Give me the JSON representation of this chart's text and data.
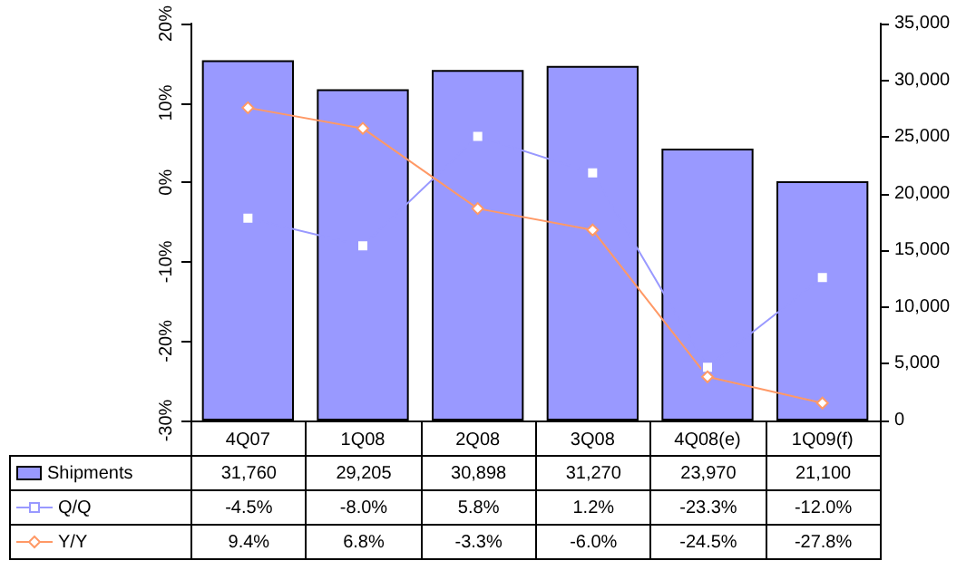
{
  "chart_data": {
    "type": "bar",
    "categories": [
      "4Q07",
      "1Q08",
      "2Q08",
      "3Q08",
      "4Q08(e)",
      "1Q09(f)"
    ],
    "series": [
      {
        "name": "Shipments",
        "axis": "y2",
        "color": "#9999ff",
        "values": [
          31760,
          29205,
          30898,
          31270,
          23970,
          21100
        ],
        "value_labels": [
          "31,760",
          "29,205",
          "30,898",
          "31,270",
          "23,970",
          "21,100"
        ]
      },
      {
        "name": "Q/Q",
        "type": "line",
        "axis": "y",
        "color": "#9999ff",
        "marker": "square",
        "values": [
          -4.5,
          -8.0,
          5.8,
          1.2,
          -23.3,
          -12.0
        ],
        "value_labels": [
          "-4.5%",
          "-8.0%",
          "5.8%",
          "1.2%",
          "-23.3%",
          "-12.0%"
        ]
      },
      {
        "name": "Y/Y",
        "type": "line",
        "axis": "y",
        "color": "#ff9966",
        "marker": "diamond",
        "values": [
          9.4,
          6.8,
          -3.3,
          -6.0,
          -24.5,
          -27.8
        ],
        "value_labels": [
          "9.4%",
          "6.8%",
          "-3.3%",
          "-6.0%",
          "-24.5%",
          "-27.8%"
        ]
      }
    ],
    "ylim": [
      -30,
      20
    ],
    "yticks": [
      {
        "value": -30,
        "label": "-30%"
      },
      {
        "value": -20,
        "label": "-20%"
      },
      {
        "value": -10,
        "label": "-10%"
      },
      {
        "value": 0,
        "label": "0%"
      },
      {
        "value": 10,
        "label": "10%"
      },
      {
        "value": 20,
        "label": "20%"
      }
    ],
    "y2lim": [
      0,
      35000
    ],
    "y2ticks": [
      0,
      {
        "value": 5000,
        "label": "5,000"
      },
      {
        "value": 10000,
        "label": "10,000"
      },
      {
        "value": 15000,
        "label": "15,000"
      },
      {
        "value": 20000,
        "label": "20,000"
      },
      {
        "value": 25000,
        "label": "25,000"
      },
      {
        "value": 30000,
        "label": "30,000"
      },
      {
        "value": 35000,
        "label": "35,000"
      }
    ],
    "grid": false,
    "legend": "bottom"
  }
}
